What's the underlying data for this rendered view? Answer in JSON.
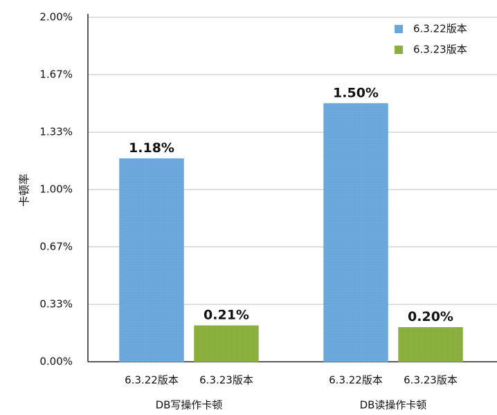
{
  "chart_data": {
    "type": "bar",
    "title": "",
    "xlabel": "",
    "ylabel": "卡顿率",
    "ylim": [
      0,
      2.0
    ],
    "y_ticks": [
      "0.00%",
      "0.33%",
      "0.67%",
      "1.00%",
      "1.33%",
      "1.67%",
      "2.00%"
    ],
    "y_tick_values": [
      0,
      0.333,
      0.667,
      1.0,
      1.333,
      1.667,
      2.0
    ],
    "grid": true,
    "legend_position": "top-right",
    "categories": [
      "DB写操作卡顿",
      "DB读操作卡顿"
    ],
    "series": [
      {
        "name": "6.3.22版本",
        "color": "#6aa8dc",
        "values": [
          1.18,
          1.5
        ],
        "labels": [
          "1.18%",
          "1.50%"
        ],
        "bar_labels": [
          "6.3.22版本",
          "6.3.22版本"
        ]
      },
      {
        "name": "6.3.23版本",
        "color": "#8aaf3d",
        "values": [
          0.21,
          0.2
        ],
        "labels": [
          "0.21%",
          "0.20%"
        ],
        "bar_labels": [
          "6.3.23版本",
          "6.3.23版本"
        ]
      }
    ]
  }
}
